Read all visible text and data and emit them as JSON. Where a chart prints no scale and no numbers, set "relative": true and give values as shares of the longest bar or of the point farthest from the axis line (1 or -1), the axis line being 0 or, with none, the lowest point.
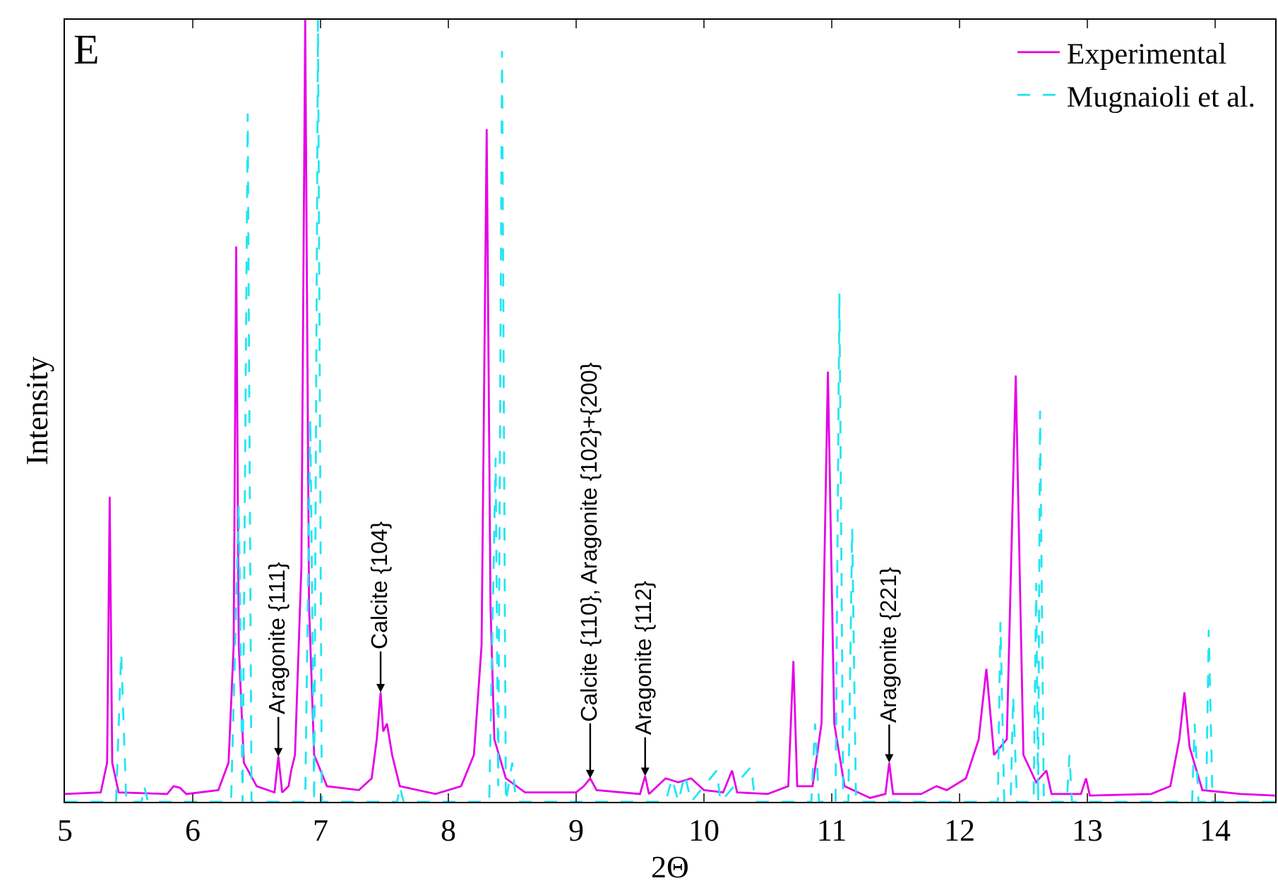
{
  "chart_data": {
    "type": "line",
    "relative": true,
    "xlabel": "2Θ",
    "ylabel": "Intensity",
    "xlim": [
      5,
      14.47
    ],
    "xticks": [
      5,
      6,
      7,
      8,
      9,
      10,
      11,
      12,
      13,
      14
    ],
    "tick_labels": "x",
    "legend": "top right",
    "series": [
      {
        "name": "Experimental",
        "color": "#e600e6",
        "line_style": "solid",
        "x": [
          5.0,
          5.28,
          5.33,
          5.35,
          5.37,
          5.42,
          5.8,
          5.85,
          5.9,
          5.95,
          6.2,
          6.28,
          6.32,
          6.34,
          6.36,
          6.4,
          6.5,
          6.64,
          6.67,
          6.7,
          6.75,
          6.77,
          6.8,
          6.85,
          6.88,
          6.91,
          6.95,
          7.05,
          7.3,
          7.4,
          7.44,
          7.47,
          7.49,
          7.52,
          7.56,
          7.62,
          7.9,
          8.1,
          8.2,
          8.26,
          8.3,
          8.33,
          8.36,
          8.45,
          8.6,
          9.0,
          9.06,
          9.11,
          9.16,
          9.5,
          9.54,
          9.57,
          9.7,
          9.8,
          9.9,
          10.0,
          10.15,
          10.22,
          10.26,
          10.5,
          10.66,
          10.7,
          10.73,
          10.85,
          10.92,
          10.97,
          11.02,
          11.1,
          11.3,
          11.42,
          11.45,
          11.48,
          11.7,
          11.82,
          11.9,
          12.05,
          12.15,
          12.21,
          12.27,
          12.37,
          12.44,
          12.5,
          12.6,
          12.68,
          12.72,
          12.95,
          12.99,
          13.02,
          13.5,
          13.65,
          13.72,
          13.76,
          13.8,
          13.9,
          14.2,
          14.47
        ],
        "values": [
          0.01,
          0.012,
          0.05,
          0.39,
          0.05,
          0.012,
          0.01,
          0.02,
          0.018,
          0.01,
          0.015,
          0.05,
          0.2,
          0.71,
          0.2,
          0.05,
          0.02,
          0.012,
          0.058,
          0.012,
          0.02,
          0.04,
          0.06,
          0.3,
          1,
          0.25,
          0.06,
          0.02,
          0.015,
          0.03,
          0.08,
          0.14,
          0.09,
          0.1,
          0.06,
          0.02,
          0.01,
          0.02,
          0.06,
          0.2,
          0.86,
          0.25,
          0.08,
          0.03,
          0.012,
          0.012,
          0.02,
          0.03,
          0.015,
          0.01,
          0.033,
          0.01,
          0.03,
          0.025,
          0.03,
          0.015,
          0.012,
          0.04,
          0.012,
          0.01,
          0.02,
          0.18,
          0.02,
          0.02,
          0.1,
          0.55,
          0.1,
          0.02,
          0.005,
          0.01,
          0.05,
          0.01,
          0.01,
          0.02,
          0.015,
          0.03,
          0.08,
          0.17,
          0.06,
          0.08,
          0.545,
          0.06,
          0.025,
          0.04,
          0.01,
          0.01,
          0.03,
          0.008,
          0.01,
          0.02,
          0.08,
          0.14,
          0.07,
          0.015,
          0.01,
          0.008
        ]
      },
      {
        "name": "Mugnaioli et al.",
        "color": "#22e6f2",
        "line_style": "dashed",
        "x": [
          5.0,
          5.4,
          5.44,
          5.48,
          5.6,
          5.62,
          5.65,
          6.3,
          6.36,
          6.39,
          6.43,
          6.46,
          6.88,
          6.92,
          6.95,
          6.98,
          7.01,
          7.6,
          7.62,
          7.65,
          8.32,
          8.37,
          8.39,
          8.42,
          8.45,
          8.5,
          8.53,
          9.7,
          9.75,
          9.8,
          9.85,
          9.9,
          10.1,
          10.13,
          10.37,
          10.4,
          10.84,
          10.87,
          10.9,
          11.03,
          11.06,
          11.09,
          11.13,
          11.16,
          11.19,
          12.3,
          12.32,
          12.35,
          12.4,
          12.42,
          12.45,
          12.58,
          12.6,
          12.615,
          12.63,
          12.66,
          12.84,
          12.86,
          12.88,
          13.82,
          13.84,
          13.87,
          13.93,
          13.95,
          13.98,
          14.47
        ],
        "values": [
          0,
          0,
          0.19,
          0,
          0,
          0.02,
          0,
          0,
          0.38,
          0,
          0.88,
          0,
          0,
          0.49,
          0,
          1,
          0,
          0,
          0.02,
          0,
          0,
          0.44,
          0.02,
          0.96,
          0,
          0.05,
          0,
          0,
          0.03,
          0,
          0.035,
          0,
          0.04,
          0,
          0.045,
          0,
          0,
          0.1,
          0,
          0,
          0.65,
          0,
          0,
          0.35,
          0,
          0,
          0.23,
          0,
          0,
          0.135,
          0,
          0,
          0.28,
          0,
          0.5,
          0,
          0,
          0.06,
          0,
          0,
          0.1,
          0,
          0,
          0.22,
          0,
          0
        ]
      }
    ],
    "annotations": [
      "E",
      {
        "text": "Aragonite {111}",
        "x": 6.67,
        "y": 0.058
      },
      {
        "text": "Calcite {104}",
        "x": 7.47,
        "y": 0.14
      },
      {
        "text": "Calcite {110}, Aragonite {102}+{200}",
        "x": 9.11,
        "y": 0.03
      },
      {
        "text": "Aragonite {112}",
        "x": 9.54,
        "y": 0.033
      },
      {
        "text": "Aragonite {221}",
        "x": 11.45,
        "y": 0.05
      }
    ]
  }
}
